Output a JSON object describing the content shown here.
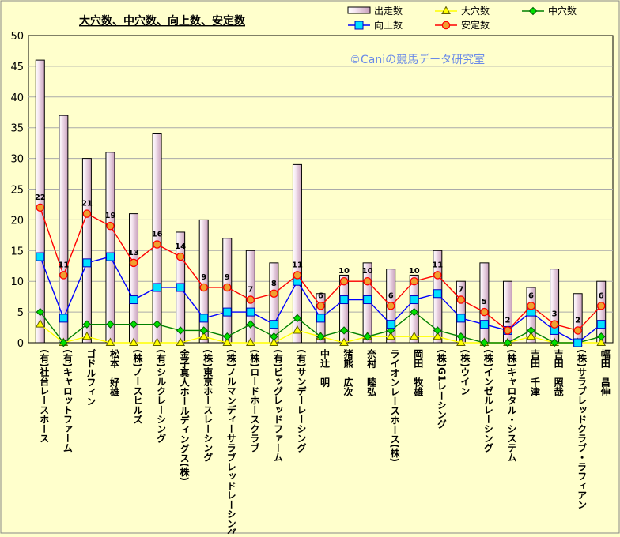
{
  "chart_data": {
    "type": "bar",
    "title": "大穴数、中穴数、向上数、安定数",
    "watermark": "©Caniの競馬データ研究室",
    "ylim": [
      0,
      50
    ],
    "yticks": [
      0,
      5,
      10,
      15,
      20,
      25,
      30,
      35,
      40,
      45,
      50
    ],
    "grid": true,
    "legend_position": "top-right",
    "categories": [
      "(有)社台レースホース",
      "(有)キャロットファーム",
      "ゴドルフィン",
      "松本　好雄",
      "(株)ノースヒルズ",
      "(有)シルクレーシング",
      "金子真人ホールディングス(株)",
      "(株)東京ホースレーシング",
      "(株)ノルマンディーサラブレッドレーシング",
      "(株)ロードホースクラブ",
      "(有)ビッグレッドファーム",
      "(有)サンデーレーシング",
      "中辻　明",
      "猪熊　広次",
      "奈村　睦弘",
      "ライオンレースホース(株)",
      "岡田　牧雄",
      "(株)G1レーシング",
      "(株)ウイン",
      "(株)インゼルレーシング",
      "(株)キャロタル・システム",
      "吉田　千津",
      "吉田　照哉",
      "(株)サラブレッドクラブ・ラフィアン",
      "幅田　昌伸"
    ],
    "series": [
      {
        "name": "出走数",
        "kind": "bar",
        "color": "#f0d8e8",
        "values": [
          46,
          37,
          30,
          31,
          21,
          34,
          18,
          20,
          17,
          15,
          13,
          29,
          8,
          11,
          13,
          12,
          11,
          15,
          10,
          13,
          10,
          9,
          12,
          8,
          10
        ]
      },
      {
        "name": "大穴数",
        "kind": "line",
        "color": "#ffff00",
        "marker": "triangle",
        "values": [
          3,
          0,
          1,
          0,
          0,
          0,
          0,
          1,
          0,
          0,
          0,
          2,
          1,
          0,
          1,
          1,
          1,
          1,
          0,
          0,
          0,
          1,
          0,
          0,
          0
        ]
      },
      {
        "name": "中穴数",
        "kind": "line",
        "color": "#008000",
        "marker": "diamond",
        "values": [
          5,
          0,
          3,
          3,
          3,
          3,
          2,
          2,
          1,
          3,
          1,
          4,
          1,
          2,
          1,
          2,
          5,
          2,
          1,
          0,
          0,
          2,
          0,
          0,
          1
        ]
      },
      {
        "name": "向上数",
        "kind": "line",
        "color": "#0000ff",
        "marker": "square",
        "values": [
          14,
          4,
          13,
          14,
          7,
          9,
          9,
          4,
          5,
          5,
          3,
          10,
          4,
          7,
          7,
          3,
          7,
          8,
          4,
          3,
          2,
          5,
          2,
          0,
          3
        ]
      },
      {
        "name": "安定数",
        "kind": "line",
        "color": "#ff0000",
        "marker": "circle",
        "values": [
          22,
          11,
          21,
          19,
          13,
          16,
          14,
          9,
          9,
          7,
          8,
          11,
          6,
          10,
          10,
          6,
          10,
          11,
          7,
          5,
          2,
          6,
          3,
          2,
          6
        ],
        "labels": [
          "22",
          "11",
          "21",
          "19",
          "13",
          "16",
          "14",
          "9",
          "9",
          "7",
          "8",
          "11",
          "6",
          "10",
          "10",
          "6",
          "10",
          "11",
          "7",
          "5",
          "2",
          "6",
          "3",
          "2",
          "6"
        ]
      }
    ]
  }
}
